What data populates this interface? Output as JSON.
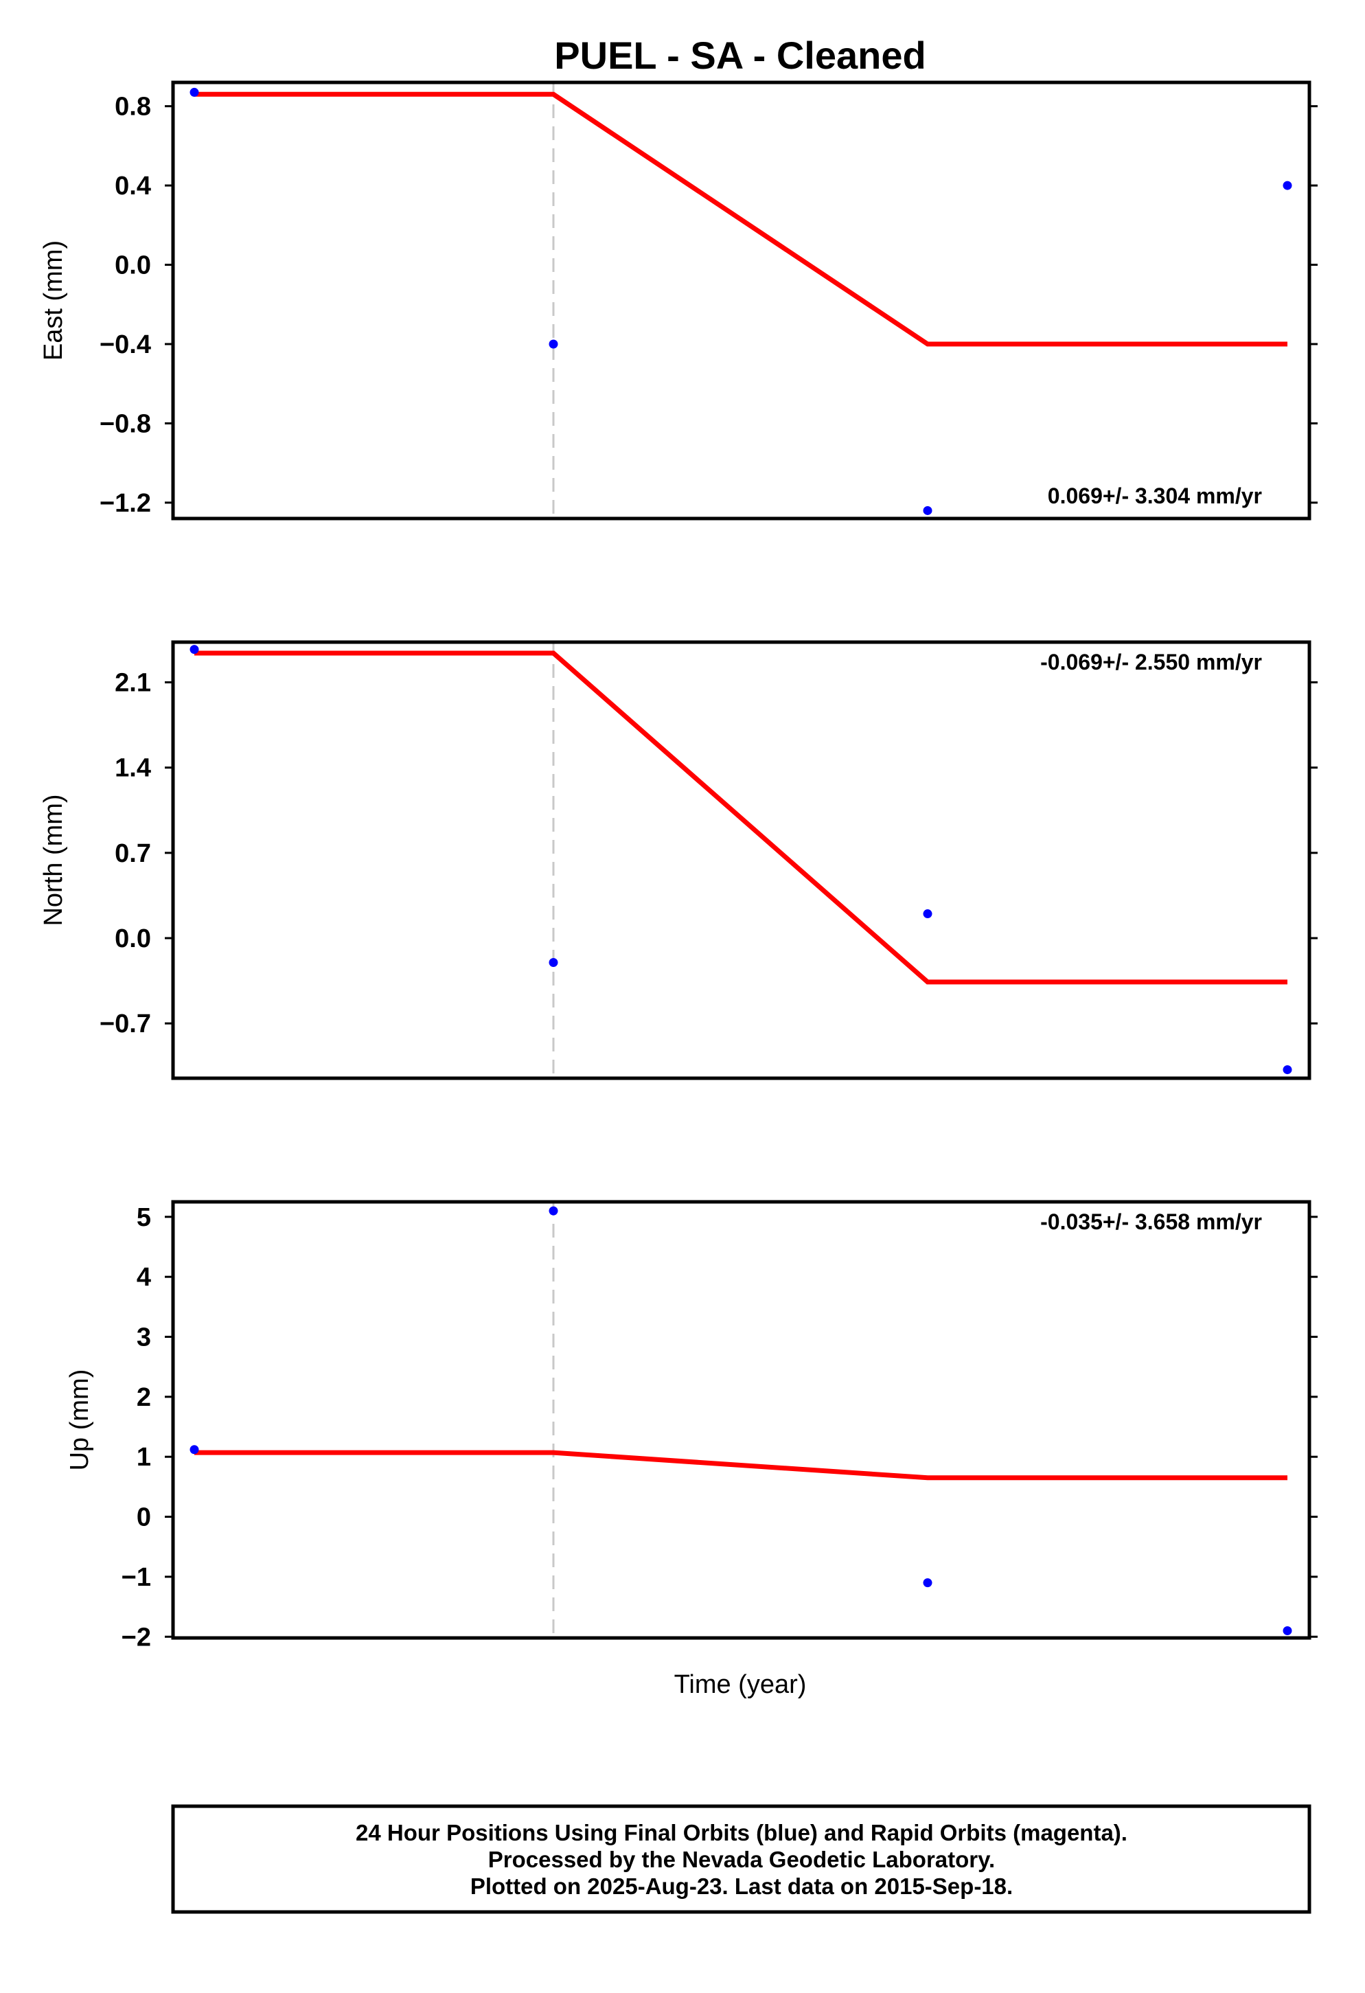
{
  "chart_data": {
    "title": "PUEL  - SA - Cleaned",
    "xlabel": "Time (year)",
    "colors": {
      "points": "#0000ff",
      "fit": "#ff0000",
      "break": "#c8c8c8",
      "frame": "#000000"
    },
    "panels": [
      {
        "type": "scatter",
        "ylabel": "East (mm)",
        "ylim": [
          -1.28,
          0.92
        ],
        "yticks": [
          {
            "value": 0.8,
            "label": "0.8"
          },
          {
            "value": 0.4,
            "label": "0.4"
          },
          {
            "value": 0.0,
            "label": "0.0"
          },
          {
            "value": -0.4,
            "label": "−0.4"
          },
          {
            "value": -0.8,
            "label": "−0.8"
          },
          {
            "value": -1.2,
            "label": "−1.2"
          }
        ],
        "rate_text": "0.069+/- 3.304 mm/yr",
        "rate_position": "bottom-right",
        "points": [
          {
            "x": 0,
            "y": 0.87
          },
          {
            "x": 1,
            "y": -0.4
          },
          {
            "x": 2,
            "y": -1.24
          },
          {
            "x": 3,
            "y": 0.4
          }
        ],
        "fit_line": [
          {
            "x": 0,
            "y": 0.86
          },
          {
            "x": 1,
            "y": 0.86
          },
          {
            "x": 2,
            "y": -0.4
          },
          {
            "x": 3,
            "y": -0.4
          }
        ]
      },
      {
        "type": "scatter",
        "ylabel": "North (mm)",
        "ylim": [
          -1.15,
          2.43
        ],
        "yticks": [
          {
            "value": 2.1,
            "label": "2.1"
          },
          {
            "value": 1.4,
            "label": "1.4"
          },
          {
            "value": 0.7,
            "label": "0.7"
          },
          {
            "value": 0.0,
            "label": "0.0"
          },
          {
            "value": -0.7,
            "label": "−0.7"
          }
        ],
        "rate_text": "-0.069+/- 2.550 mm/yr",
        "rate_position": "top-right",
        "points": [
          {
            "x": 0,
            "y": 2.37
          },
          {
            "x": 1,
            "y": -0.2
          },
          {
            "x": 2,
            "y": 0.2
          },
          {
            "x": 3,
            "y": -1.08
          }
        ],
        "fit_line": [
          {
            "x": 0,
            "y": 2.34
          },
          {
            "x": 1,
            "y": 2.34
          },
          {
            "x": 2,
            "y": -0.36
          },
          {
            "x": 3,
            "y": -0.36
          }
        ]
      },
      {
        "type": "scatter",
        "ylabel": "Up (mm)",
        "ylim": [
          -2.02,
          5.25
        ],
        "yticks": [
          {
            "value": 5,
            "label": "5"
          },
          {
            "value": 4,
            "label": "4"
          },
          {
            "value": 3,
            "label": "3"
          },
          {
            "value": 2,
            "label": "2"
          },
          {
            "value": 1,
            "label": "1"
          },
          {
            "value": 0,
            "label": "0"
          },
          {
            "value": -1,
            "label": "−1"
          },
          {
            "value": -2,
            "label": "−2"
          }
        ],
        "rate_text": "-0.035+/- 3.658 mm/yr",
        "rate_position": "top-right",
        "points": [
          {
            "x": 0,
            "y": 1.12
          },
          {
            "x": 1,
            "y": 5.1
          },
          {
            "x": 2,
            "y": -1.1
          },
          {
            "x": 3,
            "y": -1.9
          }
        ],
        "fit_line": [
          {
            "x": 0,
            "y": 1.07
          },
          {
            "x": 1,
            "y": 1.07
          },
          {
            "x": 2,
            "y": 0.65
          },
          {
            "x": 3,
            "y": 0.65
          }
        ]
      }
    ],
    "break_x": 1,
    "footer": {
      "line1": "24 Hour Positions Using Final Orbits (blue) and Rapid Orbits (magenta).",
      "line2": "Processed by the Nevada Geodetic Laboratory.",
      "line3": "Plotted on 2025-Aug-23. Last data on 2015-Sep-18."
    }
  }
}
